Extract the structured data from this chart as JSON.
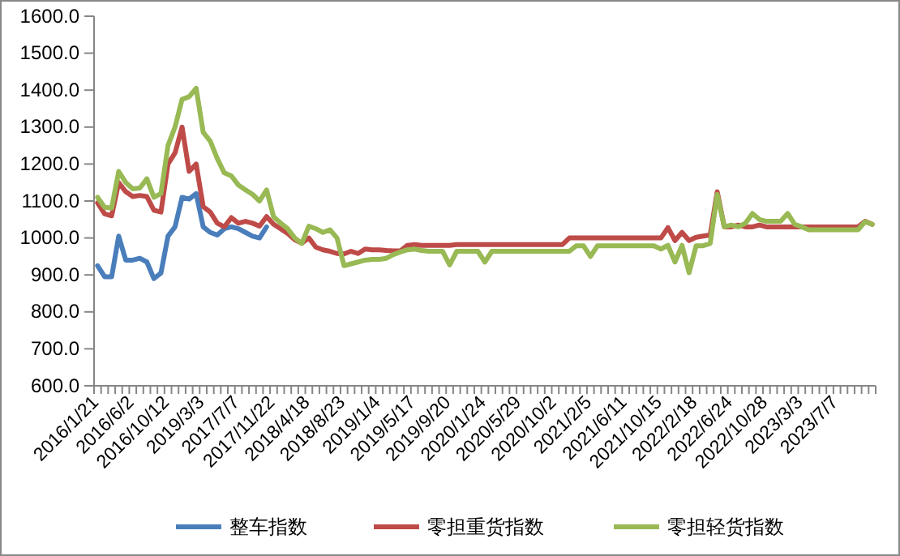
{
  "chart_data": {
    "type": "line",
    "categories": [
      "2016/1/21",
      null,
      null,
      null,
      null,
      "2016/6/2",
      null,
      null,
      null,
      null,
      "2016/10/12",
      null,
      null,
      null,
      null,
      "2019/3/3",
      null,
      null,
      null,
      null,
      "2017/7/7",
      null,
      null,
      null,
      null,
      "2017/11/22",
      null,
      null,
      null,
      null,
      "2018/4/18",
      null,
      null,
      null,
      null,
      "2018/8/23",
      null,
      null,
      null,
      null,
      "2019/1/4",
      null,
      null,
      null,
      null,
      "2019/5/17",
      null,
      null,
      null,
      null,
      "2019/9/20",
      null,
      null,
      null,
      null,
      "2020/1/24",
      null,
      null,
      null,
      null,
      "2020/5/29",
      null,
      null,
      null,
      null,
      "2020/10/2",
      null,
      null,
      null,
      null,
      "2021/2/5",
      null,
      null,
      null,
      null,
      "2021/6/11",
      null,
      null,
      null,
      null,
      "2021/10/15",
      null,
      null,
      null,
      null,
      "2022/2/18",
      null,
      null,
      null,
      null,
      "2022/6/24",
      null,
      null,
      null,
      null,
      "2022/10/28",
      null,
      null,
      null,
      null,
      "2023/3/3",
      null,
      null,
      null,
      null,
      "2023/7/7",
      null,
      null,
      null,
      null,
      null
    ],
    "series": [
      {
        "name": "整车指数",
        "color": "#4a7ebb",
        "values": [
          925,
          895,
          895,
          1005,
          940,
          940,
          945,
          935,
          890,
          905,
          1005,
          1030,
          1110,
          1105,
          1120,
          1030,
          1015,
          1008,
          1025,
          1030,
          1025,
          1015,
          1005,
          1000,
          1030,
          null,
          null,
          null,
          null,
          null,
          null,
          null,
          null,
          null,
          null,
          null,
          null,
          null,
          null,
          null,
          null,
          null,
          null,
          null,
          null,
          null,
          null,
          null,
          null,
          null,
          null,
          null,
          null,
          null,
          null,
          null,
          null,
          null,
          null,
          null,
          null,
          null,
          null,
          null,
          null,
          null,
          null,
          null,
          null,
          null,
          null,
          null,
          null,
          null,
          null,
          null,
          null,
          null,
          null,
          null,
          null,
          null,
          null,
          null,
          null,
          null,
          null,
          null,
          null,
          null,
          null,
          null,
          null,
          null,
          null,
          null,
          null,
          null,
          null,
          null,
          null,
          null,
          null,
          null,
          null,
          null,
          null,
          null,
          null,
          null,
          null
        ]
      },
      {
        "name": "零担重货指数",
        "color": "#be4b48",
        "values": [
          1095,
          1065,
          1060,
          1150,
          1125,
          1112,
          1115,
          1112,
          1075,
          1070,
          1200,
          1230,
          1300,
          1180,
          1200,
          1085,
          1070,
          1040,
          1030,
          1055,
          1040,
          1045,
          1040,
          1032,
          1058,
          1037,
          1025,
          1012,
          995,
          986,
          1000,
          975,
          968,
          964,
          958,
          957,
          964,
          958,
          970,
          968,
          968,
          966,
          965,
          965,
          980,
          982,
          980,
          980,
          980,
          980,
          980,
          982,
          982,
          982,
          982,
          982,
          982,
          982,
          982,
          982,
          982,
          982,
          982,
          982,
          982,
          982,
          982,
          1000,
          1000,
          1000,
          1000,
          1000,
          1000,
          1000,
          1000,
          1000,
          1000,
          1000,
          1000,
          1000,
          1000,
          1028,
          993,
          1015,
          993,
          1002,
          1005,
          1008,
          1125,
          1030,
          1030,
          1035,
          1030,
          1030,
          1035,
          1030,
          1030,
          1030,
          1030,
          1030,
          1030,
          1030,
          1030,
          1030,
          1030,
          1030,
          1030,
          1030,
          1030,
          1045,
          1037
        ]
      },
      {
        "name": "零担轻货指数",
        "color": "#98b954",
        "values": [
          1110,
          1083,
          1081,
          1180,
          1150,
          1133,
          1135,
          1160,
          1110,
          1120,
          1250,
          1300,
          1375,
          1382,
          1405,
          1286,
          1262,
          1215,
          1176,
          1168,
          1143,
          1130,
          1118,
          1100,
          1130,
          1057,
          1040,
          1025,
          1000,
          985,
          1032,
          1025,
          1015,
          1022,
          1000,
          925,
          930,
          935,
          940,
          942,
          942,
          945,
          955,
          962,
          968,
          970,
          966,
          964,
          964,
          964,
          927,
          964,
          964,
          964,
          964,
          935,
          964,
          964,
          964,
          964,
          964,
          964,
          964,
          964,
          964,
          964,
          964,
          964,
          979,
          979,
          950,
          979,
          979,
          979,
          979,
          979,
          979,
          979,
          979,
          979,
          970,
          980,
          935,
          980,
          906,
          979,
          979,
          985,
          1118,
          1030,
          1035,
          1030,
          1040,
          1066,
          1050,
          1045,
          1045,
          1045,
          1066,
          1037,
          1030,
          1022,
          1022,
          1022,
          1022,
          1022,
          1022,
          1022,
          1022,
          1044,
          1037
        ]
      }
    ],
    "ylim": [
      600,
      1600
    ],
    "yticks": [
      {
        "value": 600,
        "label": "600.0"
      },
      {
        "value": 700,
        "label": "700.0"
      },
      {
        "value": 800,
        "label": "800.0"
      },
      {
        "value": 900,
        "label": "900.0"
      },
      {
        "value": 1000,
        "label": "1000.0"
      },
      {
        "value": 1100,
        "label": "1100.0"
      },
      {
        "value": 1200,
        "label": "1200.0"
      },
      {
        "value": 1300,
        "label": "1300.0"
      },
      {
        "value": 1400,
        "label": "1400.0"
      },
      {
        "value": 1500,
        "label": "1500.0"
      },
      {
        "value": 1600,
        "label": "1600.0"
      }
    ],
    "grid": false,
    "legend": "bottom",
    "marker": "none",
    "line_style": "solid"
  }
}
